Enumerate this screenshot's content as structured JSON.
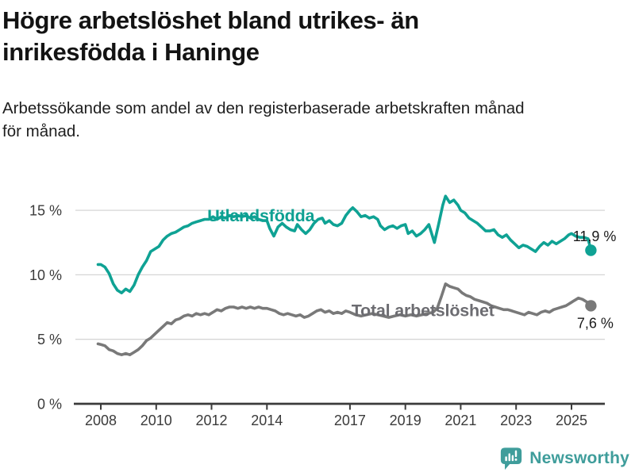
{
  "header": {
    "title_lines": [
      "Högre arbetslöshet bland utrikes- än",
      "inrikesfödda i Haninge"
    ],
    "subtitle_lines": [
      "Arbetssökande som andel av den registerbaserade arbetskraften månad",
      "för månad."
    ]
  },
  "footer": {
    "brand": "Newsworthy",
    "icon": "speech-bubble-bar-chart-icon",
    "brand_color": "#3f9d9b"
  },
  "chart_data": {
    "type": "line",
    "title": "Högre arbetslöshet bland utrikes- än inrikesfödda i Haninge",
    "subtitle": "Arbetssökande som andel av den registerbaserade arbetskraften månad för månad.",
    "unit": "%",
    "grid": "horizontal",
    "legend_position": "inline-labels",
    "x_axis": {
      "ticks": [
        2008,
        2010,
        2012,
        2014,
        2017,
        2019,
        2021,
        2023,
        2025
      ],
      "range": [
        2007.9,
        2026.2
      ]
    },
    "y_axis": {
      "ticks": [
        0,
        5,
        10,
        15
      ],
      "tick_labels": [
        "0 %",
        "5 %",
        "10 %",
        "15 %"
      ],
      "range": [
        0,
        17.5
      ]
    },
    "colors": {
      "utlandsfodda": "#0fa294",
      "total": "#797979",
      "grid": "#d6d6d6",
      "axis": "#3b3b3b",
      "value_label": "#1a1a1a"
    },
    "series": [
      {
        "id": "utlandsfodda",
        "name": "Utlandsfödda",
        "color": "#0fa294",
        "end_value": 11.9,
        "end_label": "11,9 %",
        "points": [
          [
            2007.9,
            10.8
          ],
          [
            2008.0,
            10.8
          ],
          [
            2008.15,
            10.6
          ],
          [
            2008.3,
            10.1
          ],
          [
            2008.45,
            9.3
          ],
          [
            2008.6,
            8.8
          ],
          [
            2008.75,
            8.6
          ],
          [
            2008.9,
            8.9
          ],
          [
            2009.05,
            8.7
          ],
          [
            2009.2,
            9.2
          ],
          [
            2009.35,
            10.0
          ],
          [
            2009.5,
            10.6
          ],
          [
            2009.65,
            11.1
          ],
          [
            2009.8,
            11.8
          ],
          [
            2009.95,
            12.0
          ],
          [
            2010.1,
            12.2
          ],
          [
            2010.25,
            12.7
          ],
          [
            2010.4,
            13.0
          ],
          [
            2010.55,
            13.2
          ],
          [
            2010.7,
            13.3
          ],
          [
            2010.85,
            13.5
          ],
          [
            2011.0,
            13.7
          ],
          [
            2011.15,
            13.8
          ],
          [
            2011.3,
            14.0
          ],
          [
            2011.45,
            14.1
          ],
          [
            2011.6,
            14.2
          ],
          [
            2011.75,
            14.3
          ],
          [
            2011.9,
            14.3
          ],
          [
            2012.05,
            14.5
          ],
          [
            2012.2,
            14.3
          ],
          [
            2012.35,
            14.5
          ],
          [
            2012.5,
            14.4
          ],
          [
            2012.65,
            14.6
          ],
          [
            2012.8,
            14.5
          ],
          [
            2012.95,
            14.6
          ],
          [
            2013.1,
            14.5
          ],
          [
            2013.25,
            14.6
          ],
          [
            2013.4,
            14.4
          ],
          [
            2013.55,
            14.5
          ],
          [
            2013.7,
            14.3
          ],
          [
            2013.85,
            14.2
          ],
          [
            2014.0,
            14.2
          ],
          [
            2014.1,
            13.6
          ],
          [
            2014.25,
            13.0
          ],
          [
            2014.4,
            13.7
          ],
          [
            2014.55,
            14.0
          ],
          [
            2014.7,
            13.7
          ],
          [
            2014.85,
            13.5
          ],
          [
            2015.0,
            13.4
          ],
          [
            2015.1,
            13.9
          ],
          [
            2015.25,
            13.5
          ],
          [
            2015.4,
            13.2
          ],
          [
            2015.55,
            13.5
          ],
          [
            2015.7,
            14.0
          ],
          [
            2015.85,
            14.3
          ],
          [
            2016.0,
            14.4
          ],
          [
            2016.1,
            14.0
          ],
          [
            2016.25,
            14.2
          ],
          [
            2016.4,
            13.9
          ],
          [
            2016.55,
            13.8
          ],
          [
            2016.7,
            14.0
          ],
          [
            2016.85,
            14.6
          ],
          [
            2017.0,
            15.0
          ],
          [
            2017.1,
            15.2
          ],
          [
            2017.25,
            14.9
          ],
          [
            2017.4,
            14.5
          ],
          [
            2017.55,
            14.6
          ],
          [
            2017.7,
            14.4
          ],
          [
            2017.85,
            14.5
          ],
          [
            2018.0,
            14.3
          ],
          [
            2018.1,
            13.8
          ],
          [
            2018.25,
            13.5
          ],
          [
            2018.4,
            13.7
          ],
          [
            2018.55,
            13.8
          ],
          [
            2018.7,
            13.6
          ],
          [
            2018.85,
            13.8
          ],
          [
            2019.0,
            13.9
          ],
          [
            2019.1,
            13.2
          ],
          [
            2019.25,
            13.4
          ],
          [
            2019.4,
            13.0
          ],
          [
            2019.55,
            13.2
          ],
          [
            2019.7,
            13.5
          ],
          [
            2019.85,
            13.9
          ],
          [
            2020.05,
            12.5
          ],
          [
            2020.2,
            13.9
          ],
          [
            2020.35,
            15.4
          ],
          [
            2020.45,
            16.1
          ],
          [
            2020.6,
            15.6
          ],
          [
            2020.75,
            15.8
          ],
          [
            2020.9,
            15.4
          ],
          [
            2021.0,
            15.0
          ],
          [
            2021.15,
            14.8
          ],
          [
            2021.3,
            14.4
          ],
          [
            2021.45,
            14.2
          ],
          [
            2021.6,
            14.0
          ],
          [
            2021.75,
            13.7
          ],
          [
            2021.9,
            13.4
          ],
          [
            2022.05,
            13.4
          ],
          [
            2022.2,
            13.5
          ],
          [
            2022.35,
            13.1
          ],
          [
            2022.5,
            12.9
          ],
          [
            2022.65,
            13.1
          ],
          [
            2022.8,
            12.7
          ],
          [
            2022.95,
            12.4
          ],
          [
            2023.1,
            12.1
          ],
          [
            2023.25,
            12.3
          ],
          [
            2023.4,
            12.2
          ],
          [
            2023.55,
            12.0
          ],
          [
            2023.7,
            11.8
          ],
          [
            2023.85,
            12.2
          ],
          [
            2024.0,
            12.5
          ],
          [
            2024.15,
            12.3
          ],
          [
            2024.3,
            12.6
          ],
          [
            2024.45,
            12.4
          ],
          [
            2024.6,
            12.6
          ],
          [
            2024.75,
            12.8
          ],
          [
            2024.9,
            13.1
          ],
          [
            2025.0,
            13.2
          ],
          [
            2025.15,
            13.0
          ],
          [
            2025.3,
            12.9
          ],
          [
            2025.45,
            12.9
          ],
          [
            2025.6,
            12.8
          ],
          [
            2025.7,
            11.9
          ]
        ]
      },
      {
        "id": "total",
        "name": "Total arbetslöshet",
        "color": "#797979",
        "end_value": 7.6,
        "end_label": "7,6 %",
        "points": [
          [
            2007.9,
            4.65
          ],
          [
            2008.0,
            4.6
          ],
          [
            2008.15,
            4.5
          ],
          [
            2008.3,
            4.2
          ],
          [
            2008.45,
            4.1
          ],
          [
            2008.6,
            3.9
          ],
          [
            2008.75,
            3.8
          ],
          [
            2008.9,
            3.9
          ],
          [
            2009.05,
            3.8
          ],
          [
            2009.2,
            4.0
          ],
          [
            2009.35,
            4.2
          ],
          [
            2009.5,
            4.5
          ],
          [
            2009.65,
            4.9
          ],
          [
            2009.8,
            5.1
          ],
          [
            2009.95,
            5.4
          ],
          [
            2010.1,
            5.7
          ],
          [
            2010.25,
            6.0
          ],
          [
            2010.4,
            6.3
          ],
          [
            2010.55,
            6.2
          ],
          [
            2010.7,
            6.5
          ],
          [
            2010.85,
            6.6
          ],
          [
            2011.0,
            6.8
          ],
          [
            2011.15,
            6.9
          ],
          [
            2011.3,
            6.8
          ],
          [
            2011.45,
            7.0
          ],
          [
            2011.6,
            6.9
          ],
          [
            2011.75,
            7.0
          ],
          [
            2011.9,
            6.9
          ],
          [
            2012.05,
            7.1
          ],
          [
            2012.2,
            7.3
          ],
          [
            2012.35,
            7.2
          ],
          [
            2012.5,
            7.4
          ],
          [
            2012.65,
            7.5
          ],
          [
            2012.8,
            7.5
          ],
          [
            2012.95,
            7.4
          ],
          [
            2013.1,
            7.5
          ],
          [
            2013.25,
            7.4
          ],
          [
            2013.4,
            7.5
          ],
          [
            2013.55,
            7.4
          ],
          [
            2013.7,
            7.5
          ],
          [
            2013.85,
            7.4
          ],
          [
            2014.0,
            7.4
          ],
          [
            2014.15,
            7.3
          ],
          [
            2014.3,
            7.2
          ],
          [
            2014.45,
            7.0
          ],
          [
            2014.6,
            6.9
          ],
          [
            2014.75,
            7.0
          ],
          [
            2014.9,
            6.9
          ],
          [
            2015.05,
            6.8
          ],
          [
            2015.2,
            6.9
          ],
          [
            2015.35,
            6.7
          ],
          [
            2015.5,
            6.8
          ],
          [
            2015.65,
            7.0
          ],
          [
            2015.8,
            7.2
          ],
          [
            2015.95,
            7.3
          ],
          [
            2016.1,
            7.1
          ],
          [
            2016.25,
            7.2
          ],
          [
            2016.4,
            7.0
          ],
          [
            2016.55,
            7.1
          ],
          [
            2016.7,
            7.0
          ],
          [
            2016.85,
            7.2
          ],
          [
            2017.0,
            7.1
          ],
          [
            2017.2,
            6.9
          ],
          [
            2017.4,
            6.8
          ],
          [
            2017.6,
            6.9
          ],
          [
            2017.8,
            7.0
          ],
          [
            2018.0,
            6.9
          ],
          [
            2018.2,
            6.8
          ],
          [
            2018.4,
            6.7
          ],
          [
            2018.6,
            6.8
          ],
          [
            2018.8,
            6.9
          ],
          [
            2019.0,
            6.8
          ],
          [
            2019.2,
            6.9
          ],
          [
            2019.4,
            6.8
          ],
          [
            2019.6,
            6.9
          ],
          [
            2019.8,
            7.0
          ],
          [
            2020.0,
            7.1
          ],
          [
            2020.15,
            7.4
          ],
          [
            2020.3,
            8.3
          ],
          [
            2020.45,
            9.3
          ],
          [
            2020.6,
            9.1
          ],
          [
            2020.75,
            9.0
          ],
          [
            2020.9,
            8.9
          ],
          [
            2021.05,
            8.6
          ],
          [
            2021.2,
            8.4
          ],
          [
            2021.35,
            8.3
          ],
          [
            2021.5,
            8.1
          ],
          [
            2021.65,
            8.0
          ],
          [
            2021.8,
            7.9
          ],
          [
            2021.95,
            7.8
          ],
          [
            2022.1,
            7.6
          ],
          [
            2022.25,
            7.5
          ],
          [
            2022.4,
            7.4
          ],
          [
            2022.55,
            7.3
          ],
          [
            2022.7,
            7.3
          ],
          [
            2022.85,
            7.2
          ],
          [
            2023.0,
            7.1
          ],
          [
            2023.15,
            7.0
          ],
          [
            2023.3,
            6.9
          ],
          [
            2023.45,
            7.1
          ],
          [
            2023.6,
            7.0
          ],
          [
            2023.75,
            6.9
          ],
          [
            2023.9,
            7.1
          ],
          [
            2024.05,
            7.2
          ],
          [
            2024.2,
            7.1
          ],
          [
            2024.35,
            7.3
          ],
          [
            2024.5,
            7.4
          ],
          [
            2024.65,
            7.5
          ],
          [
            2024.8,
            7.6
          ],
          [
            2024.95,
            7.8
          ],
          [
            2025.1,
            8.0
          ],
          [
            2025.25,
            8.2
          ],
          [
            2025.4,
            8.1
          ],
          [
            2025.55,
            7.9
          ],
          [
            2025.7,
            7.6
          ]
        ]
      }
    ],
    "annotations": [
      {
        "id": "series-label-utlandsfodda",
        "text": "Utlandsfödda",
        "x": 2011.85,
        "y": 14.15,
        "color": "#0ea092",
        "size": 21.5,
        "weight": "bold"
      },
      {
        "id": "series-label-total",
        "text": "Total arbetslöshet",
        "x": 2017.05,
        "y": 6.8,
        "color": "#6c6c71",
        "size": 21.5,
        "weight": "bold"
      },
      {
        "id": "value-label-utlandsfodda",
        "text": "11,9 %",
        "x": 2025.05,
        "y": 12.62,
        "color": "#1a1a1a",
        "size": 18,
        "weight": "normal"
      },
      {
        "id": "value-label-total",
        "text": "7,6 %",
        "x": 2025.2,
        "y": 5.88,
        "color": "#1a1a1a",
        "size": 18,
        "weight": "normal"
      }
    ]
  }
}
